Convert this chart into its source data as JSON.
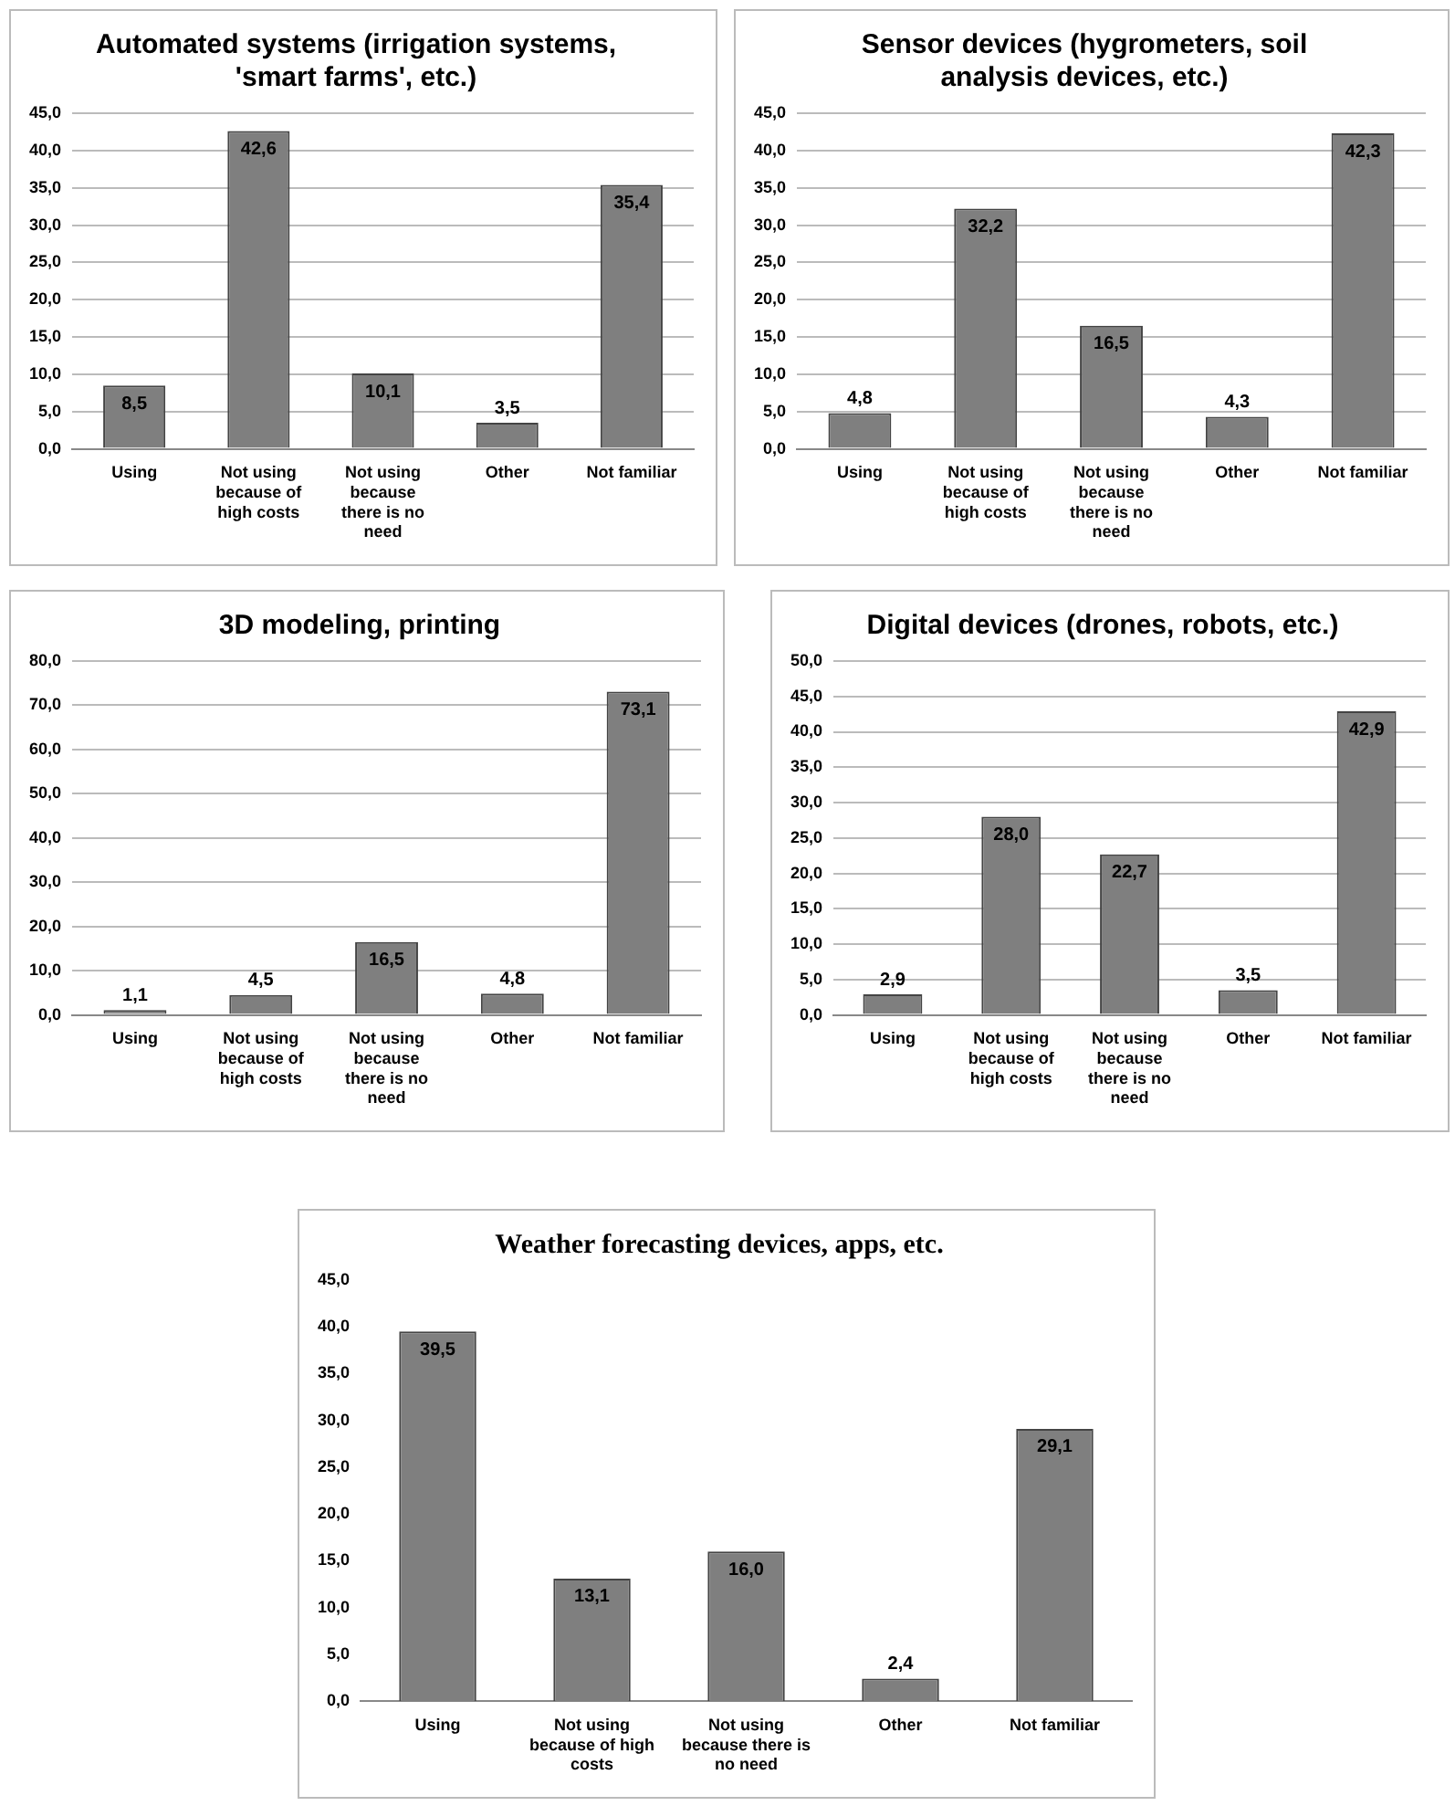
{
  "chart_data": [
    {
      "type": "bar",
      "title": "Automated systems (irrigation systems, 'smart farms', etc.)",
      "categories": [
        "Using",
        "Not using because of high costs",
        "Not using because there is no need",
        "Other",
        "Not familiar"
      ],
      "values": [
        8.5,
        42.6,
        10.1,
        3.5,
        35.4
      ],
      "value_labels": [
        "8,5",
        "42,6",
        "10,1",
        "3,5",
        "35,4"
      ],
      "color": "#7f7f7f",
      "ylim": [
        0,
        45
      ],
      "yticks": [
        {
          "value": 0,
          "label": "0,0"
        },
        {
          "value": 5,
          "label": "5,0"
        },
        {
          "value": 10,
          "label": "10,0"
        },
        {
          "value": 15,
          "label": "15,0"
        },
        {
          "value": 20,
          "label": "20,0"
        },
        {
          "value": 25,
          "label": "25,0"
        },
        {
          "value": 30,
          "label": "30,0"
        },
        {
          "value": 35,
          "label": "35,0"
        },
        {
          "value": 40,
          "label": "40,0"
        },
        {
          "value": 45,
          "label": "45,0"
        }
      ],
      "grid": "y"
    },
    {
      "type": "bar",
      "title": "Sensor devices (hygrometers, soil analysis devices, etc.)",
      "categories": [
        "Using",
        "Not using because of high costs",
        "Not using because there is no need",
        "Other",
        "Not familiar"
      ],
      "values": [
        4.8,
        32.2,
        16.5,
        4.3,
        42.3
      ],
      "value_labels": [
        "4,8",
        "32,2",
        "16,5",
        "4,3",
        "42,3"
      ],
      "color": "#7f7f7f",
      "ylim": [
        0,
        45
      ],
      "yticks": [
        {
          "value": 0,
          "label": "0,0"
        },
        {
          "value": 5,
          "label": "5,0"
        },
        {
          "value": 10,
          "label": "10,0"
        },
        {
          "value": 15,
          "label": "15,0"
        },
        {
          "value": 20,
          "label": "20,0"
        },
        {
          "value": 25,
          "label": "25,0"
        },
        {
          "value": 30,
          "label": "30,0"
        },
        {
          "value": 35,
          "label": "35,0"
        },
        {
          "value": 40,
          "label": "40,0"
        },
        {
          "value": 45,
          "label": "45,0"
        }
      ],
      "grid": "y"
    },
    {
      "type": "bar",
      "title": "3D modeling, printing",
      "categories": [
        "Using",
        "Not using because of high costs",
        "Not using because there is no need",
        "Other",
        "Not familiar"
      ],
      "values": [
        1.1,
        4.5,
        16.5,
        4.8,
        73.1
      ],
      "value_labels": [
        "1,1",
        "4,5",
        "16,5",
        "4,8",
        "73,1"
      ],
      "color": "#7f7f7f",
      "ylim": [
        0,
        80
      ],
      "yticks": [
        {
          "value": 0,
          "label": "0,0"
        },
        {
          "value": 10,
          "label": "10,0"
        },
        {
          "value": 20,
          "label": "20,0"
        },
        {
          "value": 30,
          "label": "30,0"
        },
        {
          "value": 40,
          "label": "40,0"
        },
        {
          "value": 50,
          "label": "50,0"
        },
        {
          "value": 60,
          "label": "60,0"
        },
        {
          "value": 70,
          "label": "70,0"
        },
        {
          "value": 80,
          "label": "80,0"
        }
      ],
      "grid": "y"
    },
    {
      "type": "bar",
      "title": "Digital devices (drones, robots, etc.)",
      "categories": [
        "Using",
        "Not using because of high costs",
        "Not using because there is no need",
        "Other",
        "Not familiar"
      ],
      "values": [
        2.9,
        28.0,
        22.7,
        3.5,
        42.9
      ],
      "value_labels": [
        "2,9",
        "28,0",
        "22,7",
        "3,5",
        "42,9"
      ],
      "color": "#7f7f7f",
      "ylim": [
        0,
        50
      ],
      "yticks": [
        {
          "value": 0,
          "label": "0,0"
        },
        {
          "value": 5,
          "label": "5,0"
        },
        {
          "value": 10,
          "label": "10,0"
        },
        {
          "value": 15,
          "label": "15,0"
        },
        {
          "value": 20,
          "label": "20,0"
        },
        {
          "value": 25,
          "label": "25,0"
        },
        {
          "value": 30,
          "label": "30,0"
        },
        {
          "value": 35,
          "label": "35,0"
        },
        {
          "value": 40,
          "label": "40,0"
        },
        {
          "value": 45,
          "label": "45,0"
        },
        {
          "value": 50,
          "label": "50,0"
        }
      ],
      "grid": "y"
    },
    {
      "type": "bar",
      "title": "Weather forecasting devices, apps, etc.",
      "categories": [
        "Using",
        "Not using because of high costs",
        "Not using because there is no need",
        "Other",
        "Not familiar"
      ],
      "values": [
        39.5,
        13.1,
        16.0,
        2.4,
        29.1
      ],
      "value_labels": [
        "39,5",
        "13,1",
        "16,0",
        "2,4",
        "29,1"
      ],
      "color": "#7f7f7f",
      "ylim": [
        0,
        45
      ],
      "yticks": [
        {
          "value": 0,
          "label": "0,0"
        },
        {
          "value": 5,
          "label": "5,0"
        },
        {
          "value": 10,
          "label": "10,0"
        },
        {
          "value": 15,
          "label": "15,0"
        },
        {
          "value": 20,
          "label": "20,0"
        },
        {
          "value": 25,
          "label": "25,0"
        },
        {
          "value": 30,
          "label": "30,0"
        },
        {
          "value": 35,
          "label": "35,0"
        },
        {
          "value": 40,
          "label": "40,0"
        },
        {
          "value": 45,
          "label": "45,0"
        }
      ],
      "grid": false
    }
  ]
}
